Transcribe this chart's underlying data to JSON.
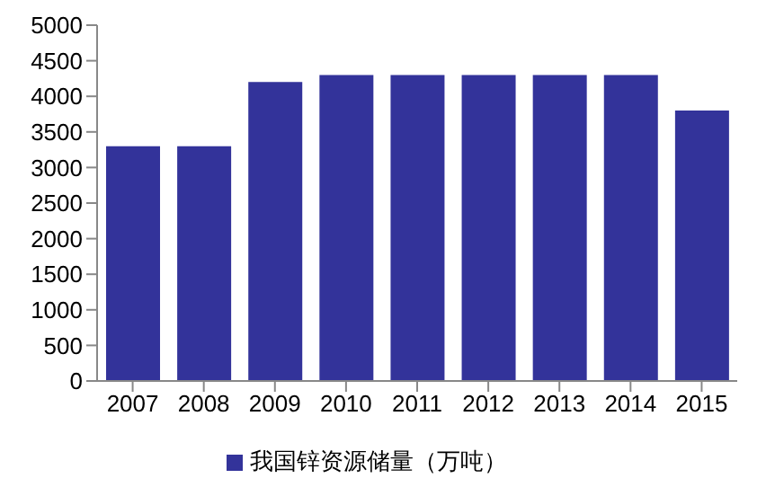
{
  "chart_data": {
    "type": "bar",
    "categories": [
      "2007",
      "2008",
      "2009",
      "2010",
      "2011",
      "2012",
      "2013",
      "2014",
      "2015"
    ],
    "series": [
      {
        "name": "我国锌资源储量（万吨）",
        "color": "#33339a",
        "values": [
          3300,
          3300,
          4200,
          4300,
          4300,
          4300,
          4300,
          4300,
          3800
        ]
      }
    ],
    "ylim": [
      0,
      5000
    ],
    "yticks": [
      0,
      500,
      1000,
      1500,
      2000,
      2500,
      3000,
      3500,
      4000,
      4500,
      5000
    ],
    "grid": false,
    "legend": "bottom"
  }
}
